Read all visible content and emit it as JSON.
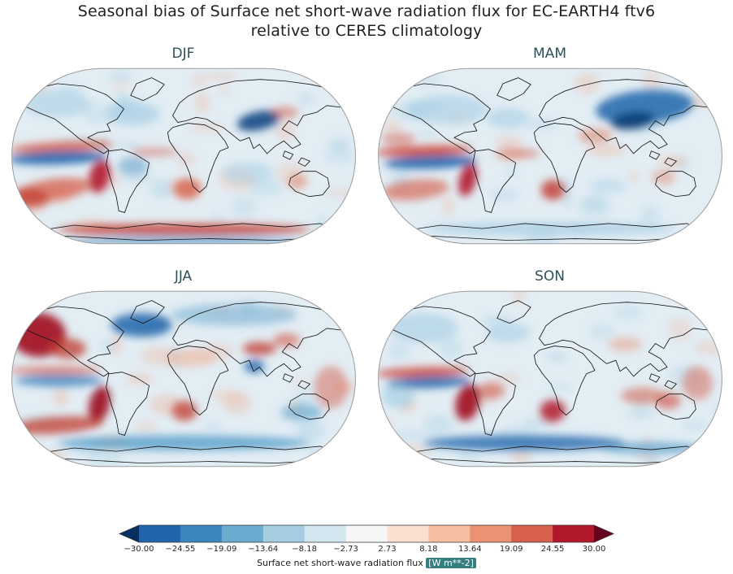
{
  "figure": {
    "title_line1": "Seasonal bias of Surface net short-wave radiation flux for EC-EARTH4 ftv6",
    "title_line2": "relative to CERES climatology"
  },
  "panels": [
    {
      "label": "DJF"
    },
    {
      "label": "MAM"
    },
    {
      "label": "JJA"
    },
    {
      "label": "SON"
    }
  ],
  "colorbar": {
    "label_text": "Surface net short-wave radiation flux",
    "label_units": "[W m**-2]",
    "ticks": [
      "−30.00",
      "−24.55",
      "−19.09",
      "−13.64",
      "−8.18",
      "−2.73",
      "2.73",
      "8.18",
      "13.64",
      "19.09",
      "24.55",
      "30.00"
    ],
    "segment_colors": [
      "#2166ac",
      "#3a87c0",
      "#6aabd0",
      "#a5cee3",
      "#d3e6f0",
      "#f7f6f6",
      "#fbe0d1",
      "#f7bfa1",
      "#ea9273",
      "#d6604d",
      "#b2182b"
    ],
    "under_color": "#053061",
    "over_color": "#67001f"
  },
  "chart_data": {
    "type": "heatmap",
    "title": "Seasonal bias of Surface net short-wave radiation flux for EC-EARTH4 ftv6 relative to CERES climatology",
    "subplots": [
      "DJF",
      "MAM",
      "JJA",
      "SON"
    ],
    "variable": "Surface net short-wave radiation flux",
    "units": "W m**-2",
    "colorbar_label": "Surface net short-wave radiation flux [W m**-2]",
    "colorbar_ticks": [
      -30.0,
      -24.55,
      -19.09,
      -13.64,
      -8.18,
      -2.73,
      2.73,
      8.18,
      13.64,
      19.09,
      24.55,
      30.0
    ],
    "vmin": -30.0,
    "vmax": 30.0,
    "colormap": "diverging blue-white-red (RdBu_r), discrete 11 bins with under/over arrow extensions",
    "projection": "Robinson",
    "legend_position": "bottom",
    "grid": false
  }
}
